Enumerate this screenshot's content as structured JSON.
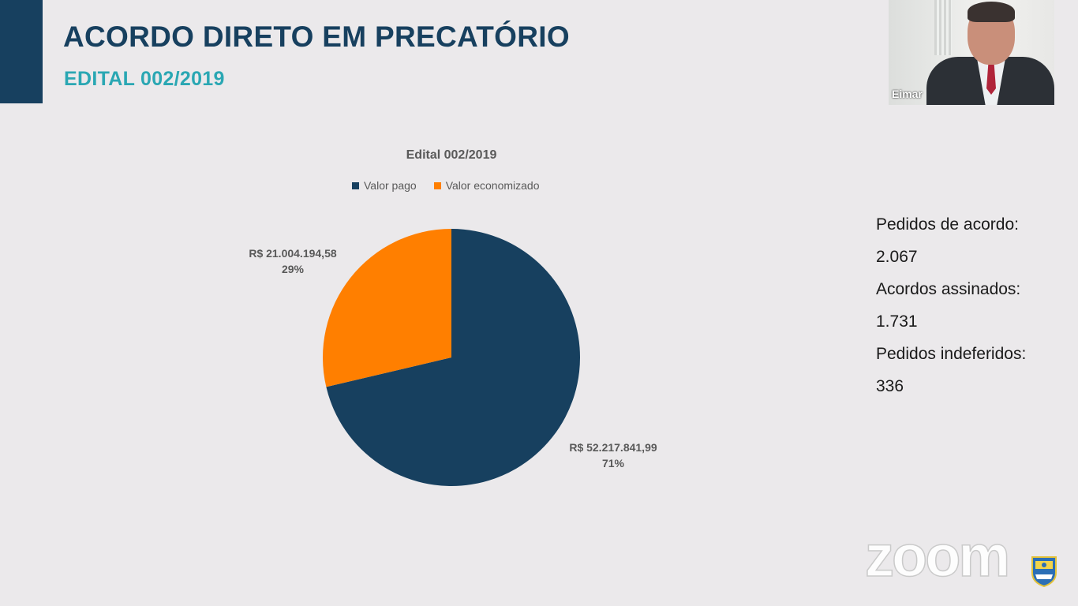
{
  "slide": {
    "title": "ACORDO DIRETO EM PRECATÓRIO",
    "subtitle": "EDITAL 002/2019",
    "colors": {
      "title": "#17405f",
      "subtitle": "#2aa7b3",
      "background": "#ebe9eb"
    }
  },
  "chart_data": {
    "type": "pie",
    "title": "Edital 002/2019",
    "legend_position": "top",
    "categories": [
      "Valor pago",
      "Valor economizado"
    ],
    "values": [
      52217841.99,
      21004194.58
    ],
    "percentages": [
      71,
      29
    ],
    "colors": [
      "#17405f",
      "#ff7f00"
    ],
    "labels": [
      {
        "value": "R$ 52.217.841,99",
        "percent": "71%"
      },
      {
        "value": "R$ 21.004.194,58",
        "percent": "29%"
      }
    ]
  },
  "stats": [
    {
      "label": "Pedidos de acordo:",
      "value": "2.067"
    },
    {
      "label": "Acordos assinados:",
      "value": "1.731"
    },
    {
      "label": "Pedidos indeferidos:",
      "value": "336"
    }
  ],
  "participant": {
    "name": "Eimar"
  },
  "watermark": {
    "text": "zoom",
    "icon": "state-emblem-icon"
  }
}
